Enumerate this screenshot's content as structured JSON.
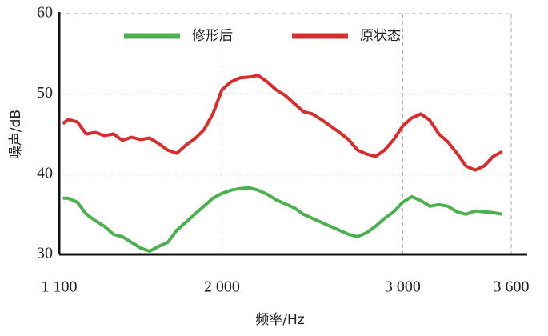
{
  "chart_data": {
    "type": "line",
    "xlabel": "频率/Hz",
    "ylabel": "噪声/dB",
    "x": [
      1120,
      1150,
      1200,
      1250,
      1300,
      1350,
      1400,
      1450,
      1500,
      1550,
      1600,
      1650,
      1700,
      1750,
      1800,
      1850,
      1900,
      1950,
      2000,
      2050,
      2100,
      2150,
      2200,
      2250,
      2300,
      2350,
      2400,
      2450,
      2500,
      2550,
      2600,
      2650,
      2700,
      2750,
      2800,
      2850,
      2900,
      2950,
      3000,
      3050,
      3100,
      3150,
      3200,
      3250,
      3300,
      3350,
      3400,
      3450,
      3500,
      3550
    ],
    "series": [
      {
        "name": "修形后",
        "color": "#4caf50",
        "values": [
          37.0,
          37.0,
          36.5,
          35.0,
          34.2,
          33.5,
          32.5,
          32.2,
          31.5,
          30.8,
          30.4,
          31.0,
          31.5,
          33.0,
          34.0,
          35.0,
          36.0,
          37.0,
          37.6,
          38.0,
          38.2,
          38.3,
          38.0,
          37.5,
          36.8,
          36.3,
          35.8,
          35.0,
          34.5,
          34.0,
          33.5,
          33.0,
          32.5,
          32.2,
          32.7,
          33.5,
          34.5,
          35.3,
          36.5,
          37.2,
          36.7,
          36.0,
          36.2,
          36.0,
          35.3,
          35.0,
          35.4,
          35.3,
          35.2,
          35.0
        ]
      },
      {
        "name": "原状态",
        "color": "#d32f2f",
        "values": [
          46.3,
          46.8,
          46.5,
          45.0,
          45.2,
          44.8,
          45.0,
          44.2,
          44.6,
          44.3,
          44.5,
          43.8,
          43.0,
          42.6,
          43.6,
          44.4,
          45.5,
          47.5,
          50.5,
          51.5,
          52.0,
          52.1,
          52.3,
          51.5,
          50.5,
          49.8,
          48.8,
          47.8,
          47.5,
          46.8,
          46.0,
          45.2,
          44.3,
          43.0,
          42.5,
          42.2,
          43.0,
          44.3,
          46.0,
          47.0,
          47.5,
          46.7,
          45.0,
          44.0,
          42.6,
          41.0,
          40.5,
          41.0,
          42.2,
          42.8
        ]
      }
    ],
    "xlim": [
      1100,
      3600
    ],
    "xticks": [
      {
        "value": 1100,
        "label": "1 100"
      },
      {
        "value": 2000,
        "label": "2 000"
      },
      {
        "value": 3000,
        "label": "3 000"
      },
      {
        "value": 3600,
        "label": "3 600"
      }
    ],
    "ylim": [
      30,
      60
    ],
    "yticks": [
      30,
      40,
      50,
      60
    ],
    "grid": true
  }
}
